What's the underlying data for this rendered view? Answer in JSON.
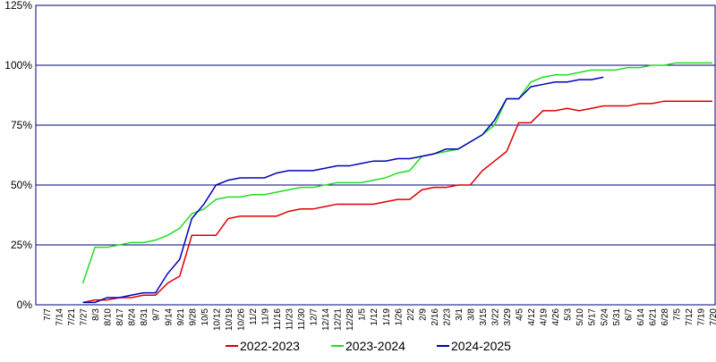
{
  "chart_data": {
    "type": "line",
    "categories": [
      "7/7",
      "7/14",
      "7/21",
      "7/27",
      "8/3",
      "8/10",
      "8/17",
      "8/24",
      "8/31",
      "9/7",
      "9/14",
      "9/21",
      "9/28",
      "10/5",
      "10/12",
      "10/19",
      "10/26",
      "11/2",
      "11/9",
      "11/16",
      "11/23",
      "11/30",
      "12/7",
      "12/14",
      "12/21",
      "12/28",
      "1/5",
      "1/12",
      "1/19",
      "1/26",
      "2/2",
      "2/9",
      "2/16",
      "2/23",
      "3/1",
      "3/8",
      "3/15",
      "3/22",
      "3/29",
      "4/5",
      "4/12",
      "4/19",
      "4/26",
      "5/3",
      "5/10",
      "5/17",
      "5/24",
      "5/31",
      "6/7",
      "6/14",
      "6/21",
      "6/28",
      "7/5",
      "7/12",
      "7/19",
      "7/20"
    ],
    "series": [
      {
        "name": "2022-2023",
        "color": "#dd0000",
        "values": [
          null,
          null,
          null,
          1,
          2,
          2,
          3,
          3,
          4,
          4,
          9,
          12,
          29,
          29,
          29,
          36,
          37,
          37,
          37,
          37,
          39,
          40,
          40,
          41,
          42,
          42,
          42,
          42,
          43,
          44,
          44,
          48,
          49,
          49,
          50,
          50,
          56,
          60,
          64,
          76,
          76,
          81,
          81,
          82,
          81,
          82,
          83,
          83,
          83,
          84,
          84,
          85,
          85,
          85,
          85,
          85
        ]
      },
      {
        "name": "2023-2024",
        "color": "#22dd22",
        "values": [
          null,
          null,
          null,
          9,
          24,
          24,
          25,
          26,
          26,
          27,
          29,
          32,
          38,
          40,
          44,
          45,
          45,
          46,
          46,
          47,
          48,
          49,
          49,
          50,
          51,
          51,
          51,
          52,
          53,
          55,
          56,
          62,
          63,
          64,
          65,
          68,
          71,
          75,
          86,
          86,
          93,
          95,
          96,
          96,
          97,
          98,
          98,
          98,
          99,
          99,
          100,
          100,
          101,
          101,
          101,
          101
        ]
      },
      {
        "name": "2024-2025",
        "color": "#0000bb",
        "values": [
          null,
          null,
          null,
          1,
          1,
          3,
          3,
          4,
          5,
          5,
          13,
          19,
          36,
          42,
          50,
          52,
          53,
          53,
          53,
          55,
          56,
          56,
          56,
          57,
          58,
          58,
          59,
          60,
          60,
          61,
          61,
          62,
          63,
          65,
          65,
          68,
          71,
          77,
          86,
          86,
          91,
          92,
          93,
          93,
          94,
          94,
          95,
          null,
          null,
          null,
          null,
          null,
          null,
          null,
          null,
          null
        ]
      }
    ],
    "ylim": [
      0,
      125
    ],
    "yticks": [
      {
        "value": 0,
        "label": "0%"
      },
      {
        "value": 25,
        "label": "25%"
      },
      {
        "value": 50,
        "label": "50%"
      },
      {
        "value": 75,
        "label": "75%"
      },
      {
        "value": 100,
        "label": "100%"
      },
      {
        "value": 125,
        "label": "125%"
      }
    ],
    "grid": true
  }
}
